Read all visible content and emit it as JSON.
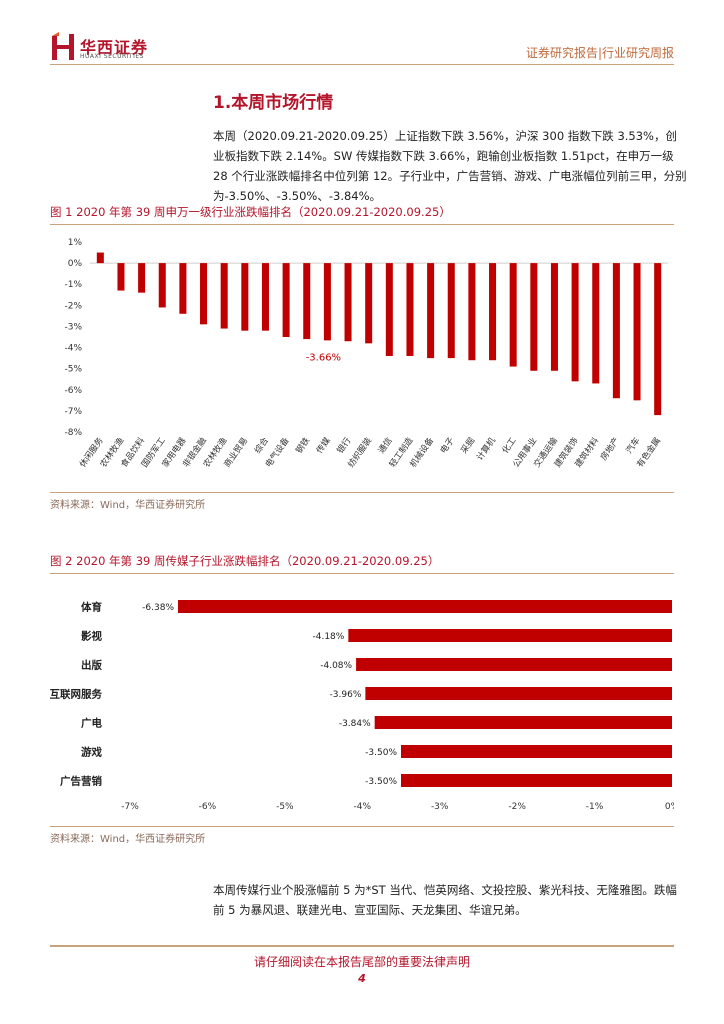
{
  "header": {
    "logo_cn": "华西证券",
    "logo_en": "HUAXI SECURITIES",
    "right_text": "证券研究报告|行业研究周报"
  },
  "section": {
    "title": "1.本周市场行情"
  },
  "paragraphs": {
    "intro": "本周（2020.09.21-2020.09.25）上证指数下跌 3.56%，沪深 300 指数下跌 3.53%，创业板指数下跌 2.14%。SW 传媒指数下跌 3.66%，跑输创业板指数 1.51pct，在申万一级 28 个行业涨跌幅排名中位列第 12。子行业中，广告营销、游戏、广电涨幅位列前三甲，分别为-3.50%、-3.50%、-3.84%。",
    "closing": "本周传媒行业个股涨幅前 5 为*ST 当代、恺英网络、文投控股、紫光科技、无隆雅图。跌幅前 5 为暴风退、联建光电、宣亚国际、天龙集团、华谊兄弟。"
  },
  "fig1": {
    "title": "图 1 2020 年第 39 周申万一级行业涨跌幅排名（2020.09.21-2020.09.25）",
    "source": "资料来源：Wind，华西证券研究所"
  },
  "fig2": {
    "title": "图 2 2020 年第 39 周传媒子行业涨跌幅排名（2020.09.21-2020.09.25）",
    "source": "资料来源：Wind，华西证券研究所"
  },
  "footer": {
    "notice": "请仔细阅读在本报告尾部的重要法律声明",
    "page": "4"
  },
  "colors": {
    "bar": "#c00000",
    "brand": "#b4152b",
    "rule": "#c8a27a"
  },
  "chart_data": [
    {
      "type": "bar",
      "title": "",
      "xlabel": "",
      "ylabel": "",
      "ylim": [
        -8,
        1
      ],
      "y_ticks": [
        "1%",
        "0%",
        "-1%",
        "-2%",
        "-3%",
        "-4%",
        "-5%",
        "-6%",
        "-7%",
        "-8%"
      ],
      "categories": [
        "休闲服务",
        "农林牧渔",
        "食品饮料",
        "国防军工",
        "家用电器",
        "非银金融",
        "农林牧渔",
        "商业贸易",
        "综合",
        "电气设备",
        "钢铁",
        "传媒",
        "银行",
        "纺织服装",
        "通信",
        "轻工制造",
        "机械设备",
        "电子",
        "采掘",
        "计算机",
        "化工",
        "公用事业",
        "交通运输",
        "建筑装饰",
        "建筑材料",
        "房地产",
        "汽车",
        "有色金属"
      ],
      "values": [
        0.5,
        -1.3,
        -1.4,
        -2.1,
        -2.4,
        -2.9,
        -3.1,
        -3.2,
        -3.2,
        -3.5,
        -3.6,
        -3.66,
        -3.7,
        -3.8,
        -4.4,
        -4.4,
        -4.5,
        -4.5,
        -4.6,
        -4.6,
        -4.9,
        -5.1,
        -5.1,
        -5.6,
        -5.7,
        -6.4,
        -6.5,
        -7.2
      ],
      "annotation": "-3.66%"
    },
    {
      "type": "bar",
      "orientation": "horizontal",
      "title": "",
      "xlabel": "",
      "ylabel": "",
      "xlim": [
        -7,
        0
      ],
      "x_ticks": [
        "-7%",
        "-6%",
        "-5%",
        "-4%",
        "-3%",
        "-2%",
        "-1%",
        "0%"
      ],
      "categories": [
        "体育",
        "影视",
        "出版",
        "互联网服务",
        "广电",
        "游戏",
        "广告营销"
      ],
      "values": [
        -6.38,
        -4.18,
        -4.08,
        -3.96,
        -3.84,
        -3.5,
        -3.5
      ],
      "value_labels": [
        "-6.38%",
        "-4.18%",
        "-4.08%",
        "-3.96%",
        "-3.84%",
        "-3.50%",
        "-3.50%"
      ]
    }
  ]
}
